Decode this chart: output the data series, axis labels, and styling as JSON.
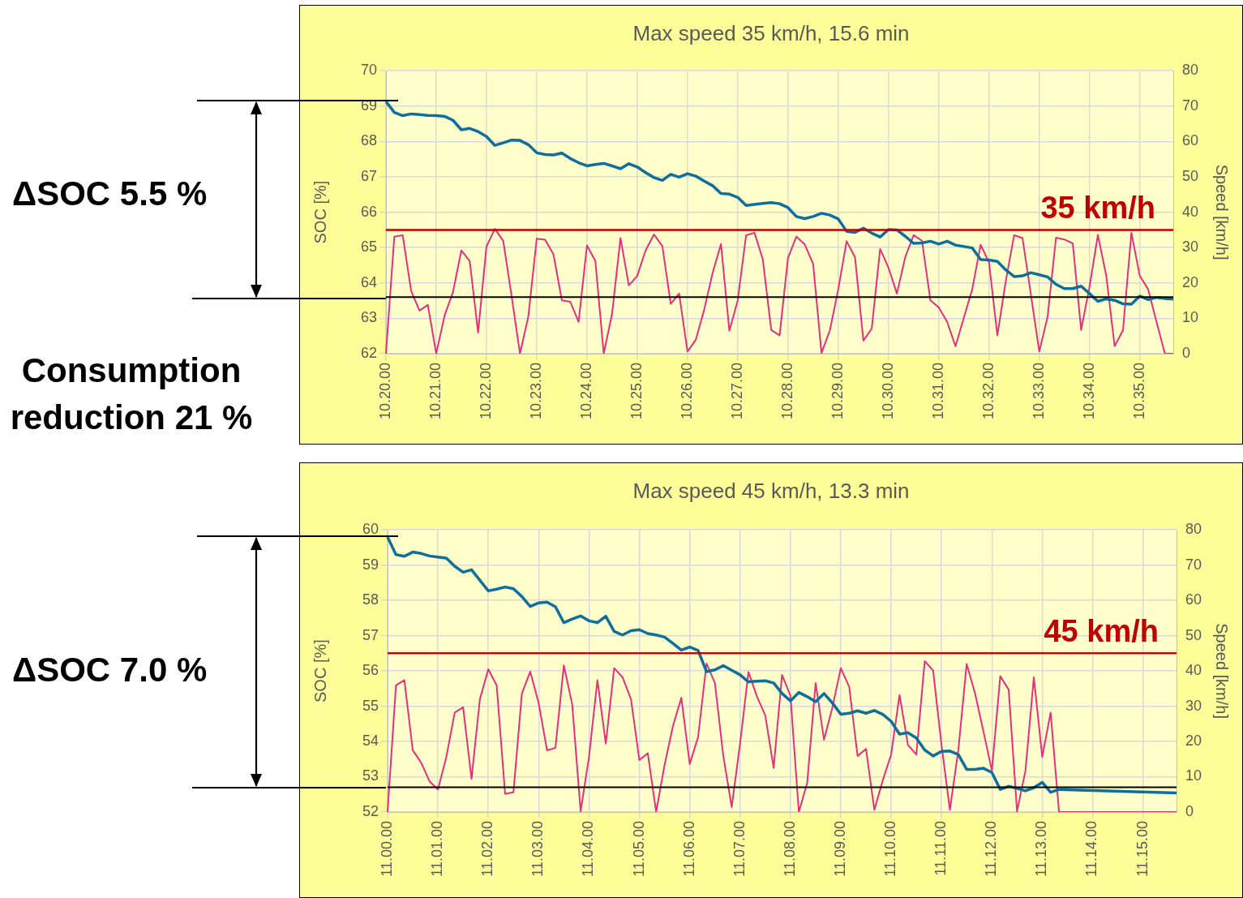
{
  "chart_data": [
    {
      "type": "line",
      "title": "Max speed 35 km/h, 15.6 min",
      "ylabel": "SOC [%]",
      "y2label": "Speed [km/h]",
      "categories": [
        "10.20.00",
        null,
        null,
        null,
        null,
        null,
        "10.21.00",
        null,
        null,
        null,
        null,
        null,
        "10.22.00",
        null,
        null,
        null,
        null,
        null,
        "10.23.00",
        null,
        null,
        null,
        null,
        null,
        "10.24.00",
        null,
        null,
        null,
        null,
        null,
        "10.25.00",
        null,
        null,
        null,
        null,
        null,
        "10.26.00",
        null,
        null,
        null,
        null,
        null,
        "10.27.00",
        null,
        null,
        null,
        null,
        null,
        "10.28.00",
        null,
        null,
        null,
        null,
        null,
        "10.29.00",
        null,
        null,
        null,
        null,
        null,
        "10.30.00",
        null,
        null,
        null,
        null,
        null,
        "10.31.00",
        null,
        null,
        null,
        null,
        null,
        "10.32.00",
        null,
        null,
        null,
        null,
        null,
        "10.33.00",
        null,
        null,
        null,
        null,
        null,
        "10.34.00",
        null,
        null,
        null,
        null,
        null,
        "10.35.00",
        null,
        null,
        null,
        null
      ],
      "series": [
        {
          "color": "#0e6e9c",
          "values": [
            69.13,
            68.82,
            68.73,
            68.78,
            68.76,
            68.74,
            68.73,
            68.71,
            68.6,
            68.33,
            68.37,
            68.28,
            68.14,
            67.89,
            67.96,
            68.04,
            68.03,
            67.91,
            67.68,
            67.63,
            67.62,
            67.67,
            67.52,
            67.4,
            67.31,
            67.35,
            67.38,
            67.31,
            67.23,
            67.37,
            67.28,
            67.12,
            66.98,
            66.9,
            67.07,
            66.99,
            67.09,
            67.02,
            66.88,
            66.75,
            66.53,
            66.51,
            66.42,
            66.19,
            66.22,
            66.25,
            66.27,
            66.24,
            66.13,
            65.88,
            65.82,
            65.88,
            65.97,
            65.92,
            65.81,
            65.46,
            65.43,
            65.55,
            65.41,
            65.3,
            65.51,
            65.5,
            65.32,
            65.12,
            65.13,
            65.18,
            65.1,
            65.18,
            65.07,
            65.03,
            64.99,
            64.66,
            64.65,
            64.61,
            64.37,
            64.18,
            64.2,
            64.29,
            64.23,
            64.17,
            63.96,
            63.84,
            63.84,
            63.91,
            63.7,
            63.48,
            63.55,
            63.51,
            63.41,
            63.4,
            63.63,
            63.53,
            63.59,
            63.56,
            63.54
          ]
        },
        {
          "color": "#e6307c",
          "axis": "y2",
          "values": [
            0,
            33.1,
            33.5,
            17.8,
            12.2,
            13.8,
            0,
            10.8,
            17.4,
            29.2,
            26.2,
            6.0,
            30.3,
            35.3,
            31.9,
            16.3,
            0,
            10.5,
            32.5,
            32.2,
            28.1,
            15.1,
            14.7,
            9.0,
            30.6,
            26.2,
            0,
            11.3,
            32.7,
            19.3,
            22.0,
            29.2,
            33.7,
            30.4,
            14.1,
            17.0,
            0.6,
            4.0,
            12.5,
            22.8,
            31.0,
            6.5,
            15.1,
            33.5,
            34.2,
            26.6,
            6.7,
            5.2,
            27.1,
            33.1,
            30.9,
            25.4,
            0.2,
            6.6,
            18.2,
            31.8,
            27.3,
            3.7,
            7.1,
            29.6,
            24.3,
            17.0,
            27.3,
            33.5,
            31.9,
            15.1,
            13.1,
            9.0,
            2.1,
            10.2,
            18.2,
            30.8,
            25.8,
            5.2,
            20.5,
            33.5,
            32.7,
            16.7,
            0.6,
            10.5,
            32.8,
            32.3,
            31.2,
            6.7,
            18.9,
            33.6,
            22.0,
            2.1,
            6.7,
            34.2,
            22.0,
            18.2,
            9.0,
            0,
            0
          ]
        }
      ],
      "ylim": [
        62,
        70
      ],
      "yticks": [
        62,
        63,
        64,
        65,
        66,
        67,
        68,
        69,
        70
      ],
      "y2lim": [
        0,
        80
      ],
      "y2ticks": [
        0,
        10,
        20,
        30,
        40,
        50,
        60,
        70,
        80
      ],
      "grid": true,
      "legend": false,
      "ref_lines": [
        {
          "axis": "y2",
          "value": 35,
          "label": "35 km/h",
          "color": "#c00000"
        },
        {
          "axis": "y",
          "value": 63.6,
          "color": "#000000"
        }
      ],
      "annotations": [
        "ΔSOC 5.5 %",
        "Consumption reduction 21 %"
      ]
    },
    {
      "type": "line",
      "title": "Max speed 45 km/h, 13.3 min",
      "ylabel": "SOC [%]",
      "y2label": "Speed [km/h]",
      "categories": [
        "11.00.00",
        null,
        null,
        null,
        null,
        null,
        "11.01.00",
        null,
        null,
        null,
        null,
        null,
        "11.02.00",
        null,
        null,
        null,
        null,
        null,
        "11.03.00",
        null,
        null,
        null,
        null,
        null,
        "11.04.00",
        null,
        null,
        null,
        null,
        null,
        "11.05.00",
        null,
        null,
        null,
        null,
        null,
        "11.06.00",
        null,
        null,
        null,
        null,
        null,
        "11.07.00",
        null,
        null,
        null,
        null,
        null,
        "11.08.00",
        null,
        null,
        null,
        null,
        null,
        "11.09.00",
        null,
        null,
        null,
        null,
        null,
        "11.10.00",
        null,
        null,
        null,
        null,
        null,
        "11.11.00",
        null,
        null,
        null,
        null,
        null,
        "11.12.00",
        null,
        null,
        null,
        null,
        null,
        "11.13.00",
        null,
        null,
        null,
        null,
        null,
        "11.14.00",
        null,
        null,
        null,
        null,
        null,
        "11.15.00",
        null,
        null,
        null,
        null
      ],
      "series": [
        {
          "color": "#0e6e9c",
          "values": [
            59.8,
            59.3,
            59.25,
            59.37,
            59.33,
            59.26,
            59.23,
            59.2,
            58.97,
            58.8,
            58.87,
            58.57,
            58.27,
            58.32,
            58.38,
            58.33,
            58.11,
            57.83,
            57.93,
            57.95,
            57.82,
            57.37,
            57.47,
            57.56,
            57.42,
            57.37,
            57.55,
            57.12,
            57.02,
            57.14,
            57.17,
            57.06,
            57.02,
            56.96,
            56.78,
            56.59,
            56.68,
            56.58,
            55.98,
            56.03,
            56.15,
            56.02,
            55.89,
            55.69,
            55.71,
            55.72,
            55.66,
            55.36,
            55.15,
            55.39,
            55.27,
            55.13,
            55.36,
            55.09,
            54.77,
            54.8,
            54.87,
            54.8,
            54.88,
            54.77,
            54.57,
            54.21,
            54.25,
            54.1,
            53.76,
            53.59,
            53.72,
            53.73,
            53.63,
            53.21,
            53.21,
            53.24,
            53.12,
            52.64,
            52.73,
            52.67,
            52.6,
            52.69,
            52.84,
            52.56,
            52.64,
            null,
            null,
            null,
            null,
            null,
            null,
            null,
            null,
            null,
            null,
            null,
            null,
            null,
            52.54
          ]
        },
        {
          "color": "#e6307c",
          "axis": "y2",
          "values": [
            0,
            35.9,
            37.4,
            17.5,
            14.0,
            8.7,
            6.4,
            15.6,
            28.2,
            29.7,
            9.4,
            32.0,
            40.5,
            35.9,
            5.2,
            5.6,
            33.6,
            39.8,
            30.9,
            17.5,
            18.2,
            41.6,
            30.5,
            0.2,
            15.6,
            37.4,
            19.4,
            40.8,
            38.2,
            32.0,
            14.7,
            16.7,
            0,
            13.3,
            24.4,
            32.4,
            13.6,
            21.3,
            42.1,
            36.6,
            15.9,
            1.4,
            19.4,
            39.7,
            32.8,
            27.4,
            12.5,
            38.9,
            33.0,
            0,
            8.3,
            36.6,
            20.5,
            29.7,
            40.8,
            35.5,
            15.9,
            17.9,
            0.6,
            9.0,
            16.3,
            33.2,
            19.0,
            16.3,
            42.8,
            40.1,
            19.0,
            0.6,
            17.5,
            42.0,
            33.6,
            22.8,
            11.7,
            38.5,
            34.7,
            0.2,
            11.7,
            38.2,
            15.6,
            28.2,
            0,
            0,
            0,
            0,
            0,
            0,
            0,
            0,
            0,
            0,
            0,
            0,
            0,
            0,
            0
          ]
        }
      ],
      "ylim": [
        52,
        60
      ],
      "yticks": [
        52,
        53,
        54,
        55,
        56,
        57,
        58,
        59,
        60
      ],
      "y2lim": [
        0,
        80
      ],
      "y2ticks": [
        0,
        10,
        20,
        30,
        40,
        50,
        60,
        70,
        80
      ],
      "grid": true,
      "legend": false,
      "ref_lines": [
        {
          "axis": "y2",
          "value": 45,
          "label": "45 km/h",
          "color": "#c00000"
        },
        {
          "axis": "y",
          "value": 52.7,
          "color": "#000000"
        }
      ],
      "annotations": [
        "ΔSOC 7.0 %"
      ]
    }
  ]
}
